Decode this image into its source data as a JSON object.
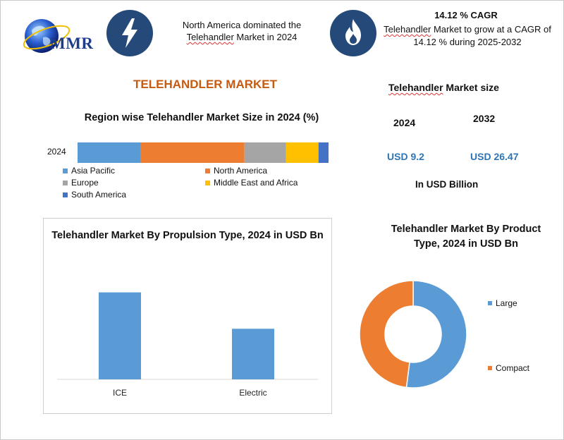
{
  "brand": {
    "logo_text": "MMR"
  },
  "header": {
    "headline": "North America dominated the Telehandler Market in 2024",
    "cagr_title": "14.12 % CAGR",
    "cagr_desc": "Telehandler Market to grow at a CAGR of 14.12 % during 2025-2032"
  },
  "main_title": "TELEHANDLER MARKET",
  "icons": {
    "left": "lightning-bolt",
    "right": "flame"
  },
  "colors": {
    "asia_pacific": "#5b9bd5",
    "north_america": "#ed7d31",
    "europe": "#a5a5a5",
    "middle_east_africa": "#ffc000",
    "south_america": "#4472c4",
    "title_orange": "#c55a11",
    "value_blue": "#2e75b6",
    "icon_bg": "#254a7a"
  },
  "market_size": {
    "title": "Telehandler Market size",
    "years": [
      "2024",
      "2032"
    ],
    "values": [
      "USD 9.2",
      "USD 26.47"
    ],
    "unit": "In USD Billion"
  },
  "chart_data": [
    {
      "type": "bar",
      "stacked": true,
      "orientation": "horizontal",
      "title": "Region wise Telehandler Market Size in 2024 (%)",
      "categories": [
        "2024"
      ],
      "series": [
        {
          "name": "Asia Pacific",
          "values": [
            25
          ]
        },
        {
          "name": "North America",
          "values": [
            41.5
          ]
        },
        {
          "name": "Europe",
          "values": [
            16.5
          ]
        },
        {
          "name": "Middle East and Africa",
          "values": [
            13
          ]
        },
        {
          "name": "South America",
          "values": [
            4
          ]
        }
      ],
      "xlim": [
        0,
        100
      ],
      "legend": "bottom",
      "grid": false
    },
    {
      "type": "bar",
      "title": "Telehandler Market By Propulsion Type, 2024 in USD Bn",
      "categories": [
        "ICE",
        "Electric"
      ],
      "values": [
        5.5,
        3.2
      ],
      "ylim": [
        0,
        7
      ],
      "grid": false,
      "axis_labels_shown": false
    },
    {
      "type": "pie",
      "donut": true,
      "title": "Telehandler Market By Product Type, 2024 in USD Bn",
      "labels": [
        "Large",
        "Compact"
      ],
      "values": [
        52,
        48
      ],
      "legend": "right"
    }
  ]
}
